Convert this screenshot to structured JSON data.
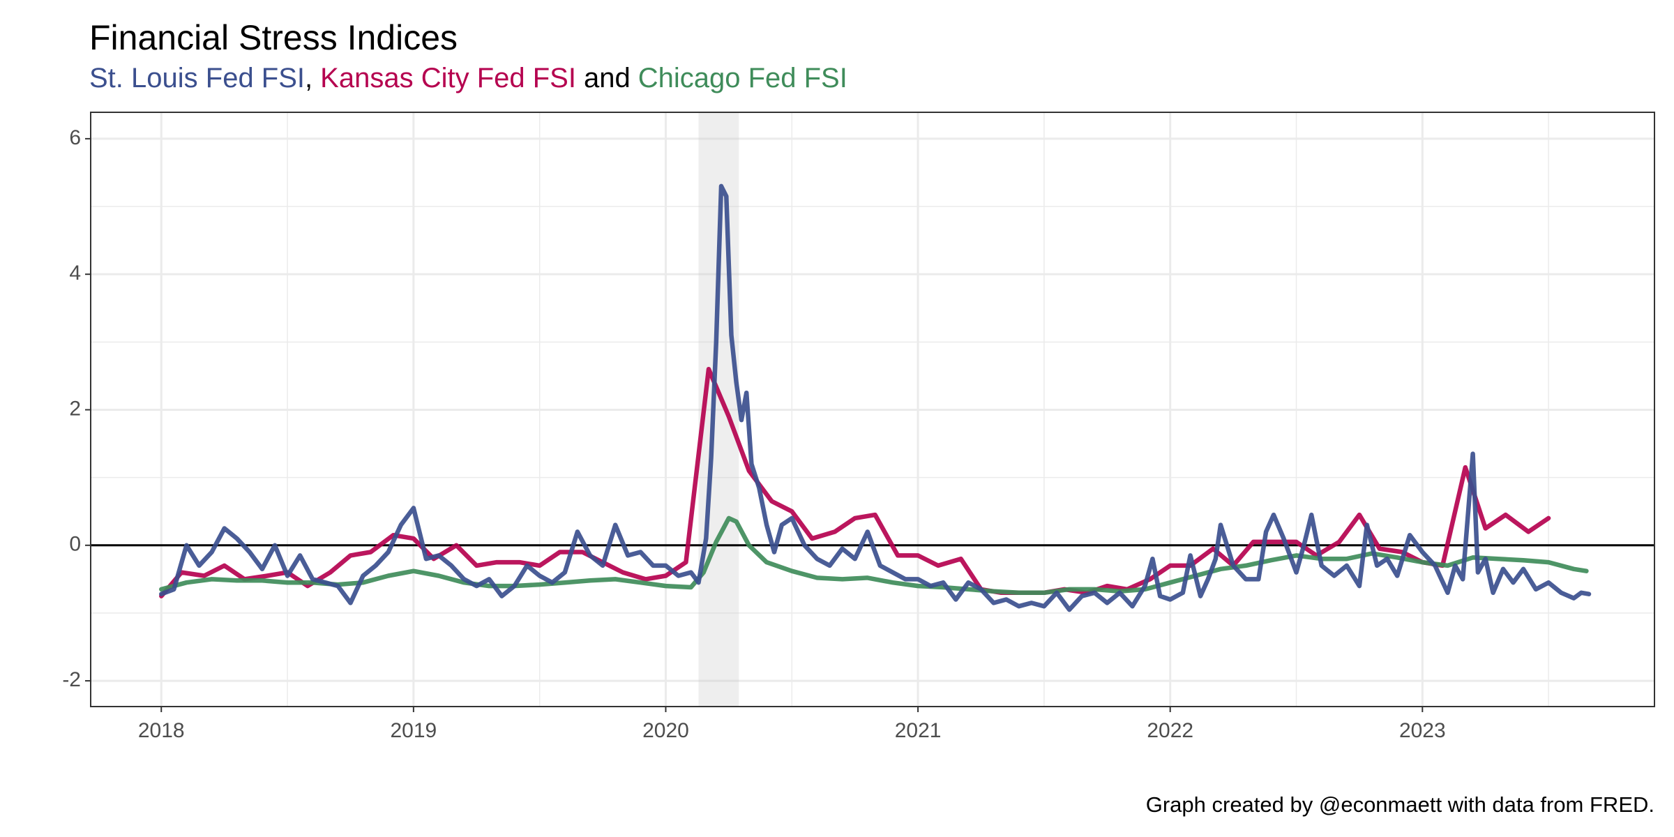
{
  "chart_data": {
    "type": "line",
    "title": "Financial Stress Indices",
    "subtitle_joins": [
      ",",
      "and"
    ],
    "caption": "Graph created by @econmaett with data from FRED.",
    "xlim": [
      2017.72,
      2023.92
    ],
    "ylim": [
      -2.38,
      6.39
    ],
    "xticks": [
      2018,
      2019,
      2020,
      2021,
      2022,
      2023
    ],
    "yticks": [
      -2,
      0,
      2,
      4,
      6
    ],
    "minor_xticks": [
      2018.5,
      2019.5,
      2020.5,
      2021.5,
      2022.5,
      2023.5
    ],
    "minor_yticks": [
      -1,
      1,
      3,
      5
    ],
    "grid": true,
    "hline": 0,
    "shaded_region": [
      2020.13,
      2020.29
    ],
    "series": [
      {
        "name": "St. Louis Fed FSI",
        "color": "#3b4f8e",
        "x": [
          2018.0,
          2018.05,
          2018.1,
          2018.15,
          2018.2,
          2018.25,
          2018.3,
          2018.35,
          2018.4,
          2018.45,
          2018.5,
          2018.55,
          2018.6,
          2018.65,
          2018.7,
          2018.75,
          2018.8,
          2018.85,
          2018.9,
          2018.95,
          2019.0,
          2019.05,
          2019.1,
          2019.15,
          2019.2,
          2019.25,
          2019.3,
          2019.35,
          2019.4,
          2019.45,
          2019.5,
          2019.55,
          2019.6,
          2019.65,
          2019.7,
          2019.75,
          2019.8,
          2019.85,
          2019.9,
          2019.95,
          2020.0,
          2020.05,
          2020.1,
          2020.13,
          2020.16,
          2020.18,
          2020.2,
          2020.22,
          2020.24,
          2020.26,
          2020.28,
          2020.3,
          2020.32,
          2020.34,
          2020.37,
          2020.4,
          2020.43,
          2020.46,
          2020.5,
          2020.55,
          2020.6,
          2020.65,
          2020.7,
          2020.75,
          2020.8,
          2020.85,
          2020.9,
          2020.95,
          2021.0,
          2021.05,
          2021.1,
          2021.15,
          2021.2,
          2021.25,
          2021.3,
          2021.35,
          2021.4,
          2021.45,
          2021.5,
          2021.55,
          2021.6,
          2021.65,
          2021.7,
          2021.75,
          2021.8,
          2021.85,
          2021.9,
          2021.93,
          2021.96,
          2022.0,
          2022.05,
          2022.08,
          2022.12,
          2022.15,
          2022.18,
          2022.2,
          2022.25,
          2022.3,
          2022.35,
          2022.38,
          2022.41,
          2022.45,
          2022.5,
          2022.53,
          2022.56,
          2022.6,
          2022.65,
          2022.7,
          2022.75,
          2022.78,
          2022.82,
          2022.86,
          2022.9,
          2022.95,
          2023.0,
          2023.05,
          2023.1,
          2023.13,
          2023.16,
          2023.2,
          2023.22,
          2023.25,
          2023.28,
          2023.32,
          2023.36,
          2023.4,
          2023.45,
          2023.5,
          2023.55,
          2023.6,
          2023.63,
          2023.66
        ],
        "values": [
          -0.72,
          -0.65,
          0.0,
          -0.3,
          -0.1,
          0.25,
          0.1,
          -0.1,
          -0.35,
          0.0,
          -0.45,
          -0.15,
          -0.5,
          -0.55,
          -0.6,
          -0.85,
          -0.45,
          -0.3,
          -0.1,
          0.3,
          0.55,
          -0.2,
          -0.15,
          -0.3,
          -0.5,
          -0.6,
          -0.5,
          -0.75,
          -0.6,
          -0.3,
          -0.45,
          -0.55,
          -0.4,
          0.2,
          -0.15,
          -0.3,
          0.3,
          -0.15,
          -0.1,
          -0.3,
          -0.3,
          -0.45,
          -0.4,
          -0.55,
          0.1,
          1.3,
          3.0,
          5.3,
          5.15,
          3.1,
          2.4,
          1.85,
          2.25,
          1.2,
          0.85,
          0.3,
          -0.1,
          0.3,
          0.4,
          0.0,
          -0.2,
          -0.3,
          -0.05,
          -0.2,
          0.2,
          -0.3,
          -0.4,
          -0.5,
          -0.5,
          -0.6,
          -0.55,
          -0.8,
          -0.55,
          -0.65,
          -0.85,
          -0.8,
          -0.9,
          -0.85,
          -0.9,
          -0.7,
          -0.95,
          -0.75,
          -0.7,
          -0.85,
          -0.7,
          -0.9,
          -0.6,
          -0.2,
          -0.75,
          -0.8,
          -0.7,
          -0.15,
          -0.75,
          -0.5,
          -0.2,
          0.3,
          -0.3,
          -0.5,
          -0.5,
          0.2,
          0.45,
          0.1,
          -0.4,
          0.0,
          0.45,
          -0.3,
          -0.45,
          -0.3,
          -0.6,
          0.3,
          -0.3,
          -0.2,
          -0.45,
          0.15,
          -0.1,
          -0.3,
          -0.7,
          -0.3,
          -0.5,
          1.35,
          -0.4,
          -0.2,
          -0.7,
          -0.35,
          -0.55,
          -0.35,
          -0.65,
          -0.55,
          -0.7,
          -0.78,
          -0.7,
          -0.72
        ]
      },
      {
        "name": "Kansas City Fed FSI",
        "color": "#b5024f",
        "x": [
          2018.0,
          2018.08,
          2018.17,
          2018.25,
          2018.33,
          2018.42,
          2018.5,
          2018.58,
          2018.67,
          2018.75,
          2018.83,
          2018.92,
          2019.0,
          2019.08,
          2019.17,
          2019.25,
          2019.33,
          2019.42,
          2019.5,
          2019.58,
          2019.67,
          2019.75,
          2019.83,
          2019.92,
          2020.0,
          2020.08,
          2020.17,
          2020.25,
          2020.33,
          2020.42,
          2020.5,
          2020.58,
          2020.67,
          2020.75,
          2020.83,
          2020.92,
          2021.0,
          2021.08,
          2021.17,
          2021.25,
          2021.33,
          2021.42,
          2021.5,
          2021.58,
          2021.67,
          2021.75,
          2021.83,
          2021.92,
          2022.0,
          2022.08,
          2022.17,
          2022.25,
          2022.33,
          2022.42,
          2022.5,
          2022.58,
          2022.67,
          2022.75,
          2022.83,
          2022.92,
          2023.0,
          2023.08,
          2023.17,
          2023.25,
          2023.33,
          2023.42,
          2023.5
        ],
        "values": [
          -0.75,
          -0.4,
          -0.45,
          -0.3,
          -0.5,
          -0.45,
          -0.4,
          -0.6,
          -0.4,
          -0.15,
          -0.1,
          0.15,
          0.1,
          -0.2,
          0.0,
          -0.3,
          -0.25,
          -0.25,
          -0.3,
          -0.1,
          -0.1,
          -0.25,
          -0.4,
          -0.5,
          -0.45,
          -0.25,
          2.6,
          1.9,
          1.1,
          0.65,
          0.5,
          0.1,
          0.2,
          0.4,
          0.45,
          -0.15,
          -0.15,
          -0.3,
          -0.2,
          -0.65,
          -0.7,
          -0.7,
          -0.7,
          -0.65,
          -0.7,
          -0.6,
          -0.65,
          -0.5,
          -0.3,
          -0.3,
          -0.05,
          -0.3,
          0.05,
          0.05,
          0.05,
          -0.15,
          0.05,
          0.45,
          -0.05,
          -0.1,
          -0.25,
          -0.3,
          1.15,
          0.25,
          0.45,
          0.2,
          0.4
        ]
      },
      {
        "name": "Chicago Fed FSI",
        "color": "#3f8c5a",
        "x": [
          2018.0,
          2018.1,
          2018.2,
          2018.3,
          2018.4,
          2018.5,
          2018.6,
          2018.7,
          2018.8,
          2018.9,
          2019.0,
          2019.1,
          2019.2,
          2019.3,
          2019.4,
          2019.5,
          2019.6,
          2019.7,
          2019.8,
          2019.9,
          2020.0,
          2020.1,
          2020.15,
          2020.2,
          2020.25,
          2020.28,
          2020.33,
          2020.4,
          2020.5,
          2020.6,
          2020.7,
          2020.8,
          2020.9,
          2021.0,
          2021.1,
          2021.2,
          2021.3,
          2021.4,
          2021.5,
          2021.6,
          2021.7,
          2021.8,
          2021.9,
          2022.0,
          2022.1,
          2022.2,
          2022.3,
          2022.4,
          2022.5,
          2022.6,
          2022.7,
          2022.8,
          2022.9,
          2023.0,
          2023.1,
          2023.2,
          2023.3,
          2023.4,
          2023.5,
          2023.6,
          2023.65
        ],
        "values": [
          -0.65,
          -0.55,
          -0.5,
          -0.52,
          -0.52,
          -0.55,
          -0.55,
          -0.58,
          -0.55,
          -0.45,
          -0.38,
          -0.45,
          -0.55,
          -0.6,
          -0.6,
          -0.58,
          -0.55,
          -0.52,
          -0.5,
          -0.55,
          -0.6,
          -0.62,
          -0.4,
          0.05,
          0.4,
          0.35,
          0.0,
          -0.25,
          -0.38,
          -0.48,
          -0.5,
          -0.48,
          -0.55,
          -0.6,
          -0.62,
          -0.65,
          -0.68,
          -0.7,
          -0.7,
          -0.65,
          -0.65,
          -0.68,
          -0.65,
          -0.55,
          -0.45,
          -0.35,
          -0.3,
          -0.22,
          -0.15,
          -0.2,
          -0.2,
          -0.12,
          -0.18,
          -0.25,
          -0.3,
          -0.18,
          -0.2,
          -0.22,
          -0.25,
          -0.35,
          -0.38
        ]
      }
    ]
  }
}
